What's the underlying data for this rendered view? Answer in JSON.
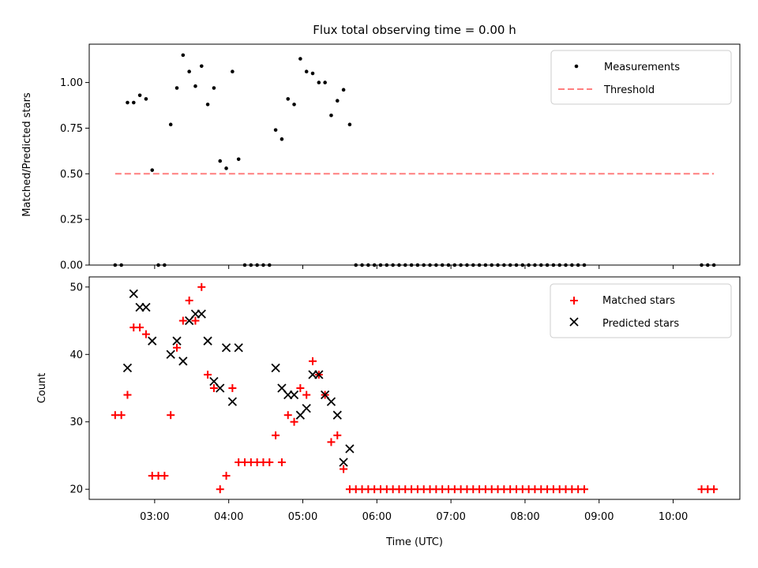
{
  "chart_data": [
    {
      "type": "scatter",
      "title": "Flux total observing time = 0.00 h",
      "xlabel": "",
      "ylabel": "Matched/Predicted stars",
      "xlim": [
        "02:07",
        "10:54"
      ],
      "ylim": [
        0,
        1.21
      ],
      "yticks": [
        0.0,
        0.25,
        0.5,
        0.75,
        1.0
      ],
      "ytick_labels": [
        "0.00",
        "0.25",
        "0.50",
        "0.75",
        "1.00"
      ],
      "legend_position": "top-right",
      "grid": false,
      "series": [
        {
          "name": "Measurements",
          "marker": "dot",
          "color": "#000000",
          "x": [
            "02:28",
            "02:33",
            "02:38",
            "02:43",
            "02:48",
            "02:53",
            "02:58",
            "03:03",
            "03:08",
            "03:13",
            "03:18",
            "03:23",
            "03:28",
            "03:33",
            "03:38",
            "03:43",
            "03:48",
            "03:53",
            "03:58",
            "04:03",
            "04:08",
            "04:13",
            "04:18",
            "04:23",
            "04:28",
            "04:33",
            "04:38",
            "04:43",
            "04:48",
            "04:53",
            "04:58",
            "05:03",
            "05:08",
            "05:13",
            "05:18",
            "05:23",
            "05:28",
            "05:33",
            "05:38",
            "05:43",
            "05:48",
            "05:53",
            "05:58",
            "06:03",
            "06:08",
            "06:13",
            "06:18",
            "06:23",
            "06:28",
            "06:33",
            "06:38",
            "06:43",
            "06:48",
            "06:53",
            "06:58",
            "07:03",
            "07:08",
            "07:13",
            "07:18",
            "07:23",
            "07:28",
            "07:33",
            "07:38",
            "07:43",
            "07:48",
            "07:53",
            "07:58",
            "08:03",
            "08:08",
            "08:13",
            "08:18",
            "08:23",
            "08:28",
            "08:33",
            "08:38",
            "08:43",
            "08:48",
            "10:23",
            "10:28",
            "10:33"
          ],
          "y": [
            0.0,
            0.0,
            0.89,
            0.89,
            0.93,
            0.91,
            0.52,
            0.0,
            0.0,
            0.77,
            0.97,
            1.15,
            1.06,
            0.98,
            1.09,
            0.88,
            0.97,
            0.57,
            0.53,
            1.06,
            0.58,
            0.0,
            0.0,
            0.0,
            0.0,
            0.0,
            0.74,
            0.69,
            0.91,
            0.88,
            1.13,
            1.06,
            1.05,
            1.0,
            1.0,
            0.82,
            0.9,
            0.96,
            0.77,
            0.0,
            0.0,
            0.0,
            0.0,
            0.0,
            0.0,
            0.0,
            0.0,
            0.0,
            0.0,
            0.0,
            0.0,
            0.0,
            0.0,
            0.0,
            0.0,
            0.0,
            0.0,
            0.0,
            0.0,
            0.0,
            0.0,
            0.0,
            0.0,
            0.0,
            0.0,
            0.0,
            0.0,
            0.0,
            0.0,
            0.0,
            0.0,
            0.0,
            0.0,
            0.0,
            0.0,
            0.0,
            0.0,
            0.0,
            0.0,
            0.0
          ]
        },
        {
          "name": "Threshold",
          "type": "line",
          "dash": "dashed",
          "color": "#ff7f7f",
          "x": [
            "02:28",
            "10:33"
          ],
          "y": [
            0.5,
            0.5
          ]
        }
      ]
    },
    {
      "type": "scatter",
      "title": "",
      "xlabel": "Time (UTC)",
      "ylabel": "Count",
      "xlim": [
        "02:07",
        "10:54"
      ],
      "ylim": [
        18.5,
        51.5
      ],
      "yticks": [
        20,
        30,
        40,
        50
      ],
      "ytick_labels": [
        "20",
        "30",
        "40",
        "50"
      ],
      "xticks": [
        "03:00",
        "04:00",
        "05:00",
        "06:00",
        "07:00",
        "08:00",
        "09:00",
        "10:00"
      ],
      "xtick_labels": [
        "03:00",
        "04:00",
        "05:00",
        "06:00",
        "07:00",
        "08:00",
        "09:00",
        "10:00"
      ],
      "legend_position": "top-right",
      "grid": false,
      "series": [
        {
          "name": "Matched stars",
          "marker": "plus",
          "color": "#ff0000",
          "x": [
            "02:28",
            "02:33",
            "02:38",
            "02:43",
            "02:48",
            "02:53",
            "02:58",
            "03:03",
            "03:08",
            "03:13",
            "03:18",
            "03:23",
            "03:28",
            "03:33",
            "03:38",
            "03:43",
            "03:48",
            "03:53",
            "03:58",
            "04:03",
            "04:08",
            "04:13",
            "04:18",
            "04:23",
            "04:28",
            "04:33",
            "04:38",
            "04:43",
            "04:48",
            "04:53",
            "04:58",
            "05:03",
            "05:08",
            "05:13",
            "05:18",
            "05:23",
            "05:28",
            "05:33",
            "05:38",
            "05:43",
            "05:48",
            "05:53",
            "05:58",
            "06:03",
            "06:08",
            "06:13",
            "06:18",
            "06:23",
            "06:28",
            "06:33",
            "06:38",
            "06:43",
            "06:48",
            "06:53",
            "06:58",
            "07:03",
            "07:08",
            "07:13",
            "07:18",
            "07:23",
            "07:28",
            "07:33",
            "07:38",
            "07:43",
            "07:48",
            "07:53",
            "07:58",
            "08:03",
            "08:08",
            "08:13",
            "08:18",
            "08:23",
            "08:28",
            "08:33",
            "08:38",
            "08:43",
            "08:48",
            "10:23",
            "10:28",
            "10:33"
          ],
          "y": [
            31,
            31,
            34,
            44,
            44,
            43,
            22,
            22,
            22,
            31,
            41,
            45,
            48,
            45,
            50,
            37,
            35,
            20,
            22,
            35,
            24,
            24,
            24,
            24,
            24,
            24,
            28,
            24,
            31,
            30,
            35,
            34,
            39,
            37,
            34,
            27,
            28,
            23,
            20,
            20,
            20,
            20,
            20,
            20,
            20,
            20,
            20,
            20,
            20,
            20,
            20,
            20,
            20,
            20,
            20,
            20,
            20,
            20,
            20,
            20,
            20,
            20,
            20,
            20,
            20,
            20,
            20,
            20,
            20,
            20,
            20,
            20,
            20,
            20,
            20,
            20,
            20,
            20,
            20,
            20
          ]
        },
        {
          "name": "Predicted stars",
          "marker": "x",
          "color": "#000000",
          "x": [
            "02:38",
            "02:43",
            "02:48",
            "02:53",
            "02:58",
            "03:13",
            "03:18",
            "03:23",
            "03:28",
            "03:33",
            "03:38",
            "03:43",
            "03:48",
            "03:53",
            "03:58",
            "04:03",
            "04:08",
            "04:38",
            "04:43",
            "04:48",
            "04:53",
            "04:58",
            "05:03",
            "05:08",
            "05:13",
            "05:18",
            "05:23",
            "05:28",
            "05:33",
            "05:38"
          ],
          "y": [
            38,
            49,
            47,
            47,
            42,
            40,
            42,
            39,
            45,
            46,
            46,
            42,
            36,
            35,
            41,
            33,
            41,
            38,
            35,
            34,
            34,
            31,
            32,
            37,
            37,
            34,
            33,
            31,
            24,
            26
          ]
        }
      ]
    }
  ]
}
